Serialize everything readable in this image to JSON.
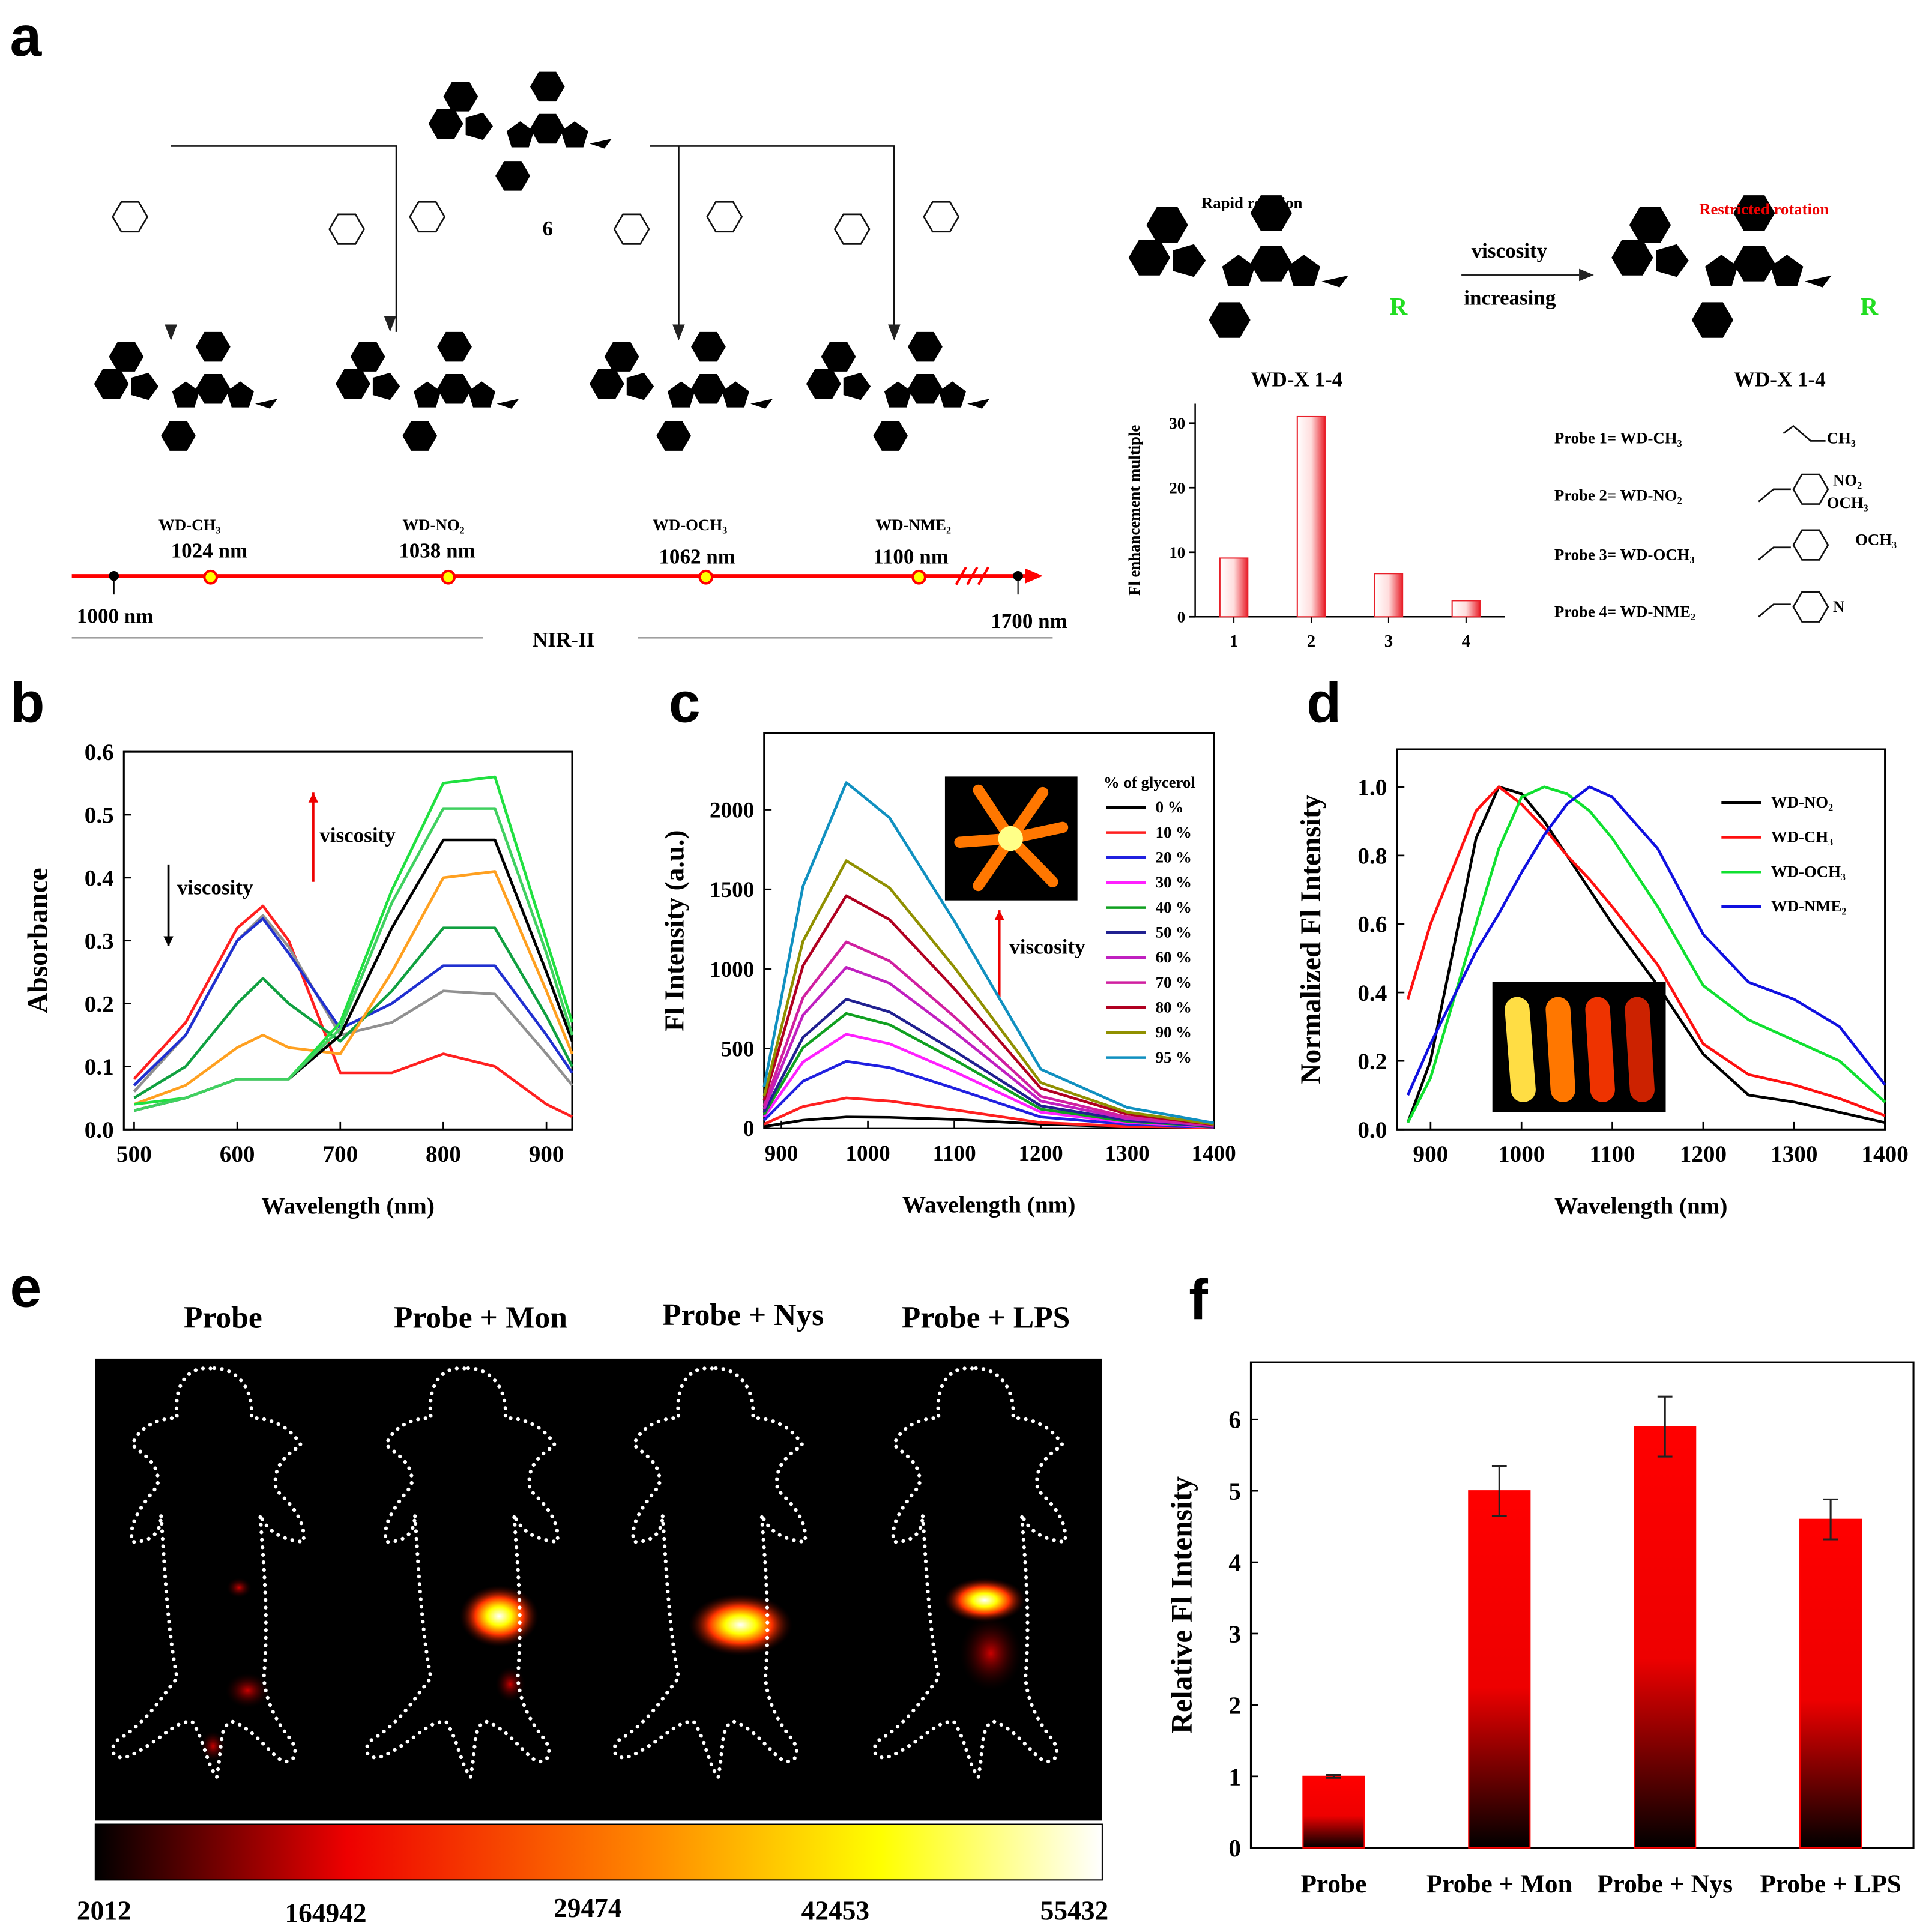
{
  "panel_labels": [
    "a",
    "b",
    "c",
    "d",
    "e",
    "f"
  ],
  "panel_a": {
    "precursor": "6",
    "compounds": [
      {
        "name": "WD-CH₃",
        "wavelength": "1024 nm"
      },
      {
        "name": "WD-NO₂",
        "wavelength": "1038 nm"
      },
      {
        "name": "WD-OCH₃",
        "wavelength": "1062 nm"
      },
      {
        "name": "WD-NME₂",
        "wavelength": "1100 nm"
      }
    ],
    "scale": {
      "start": "1000 nm",
      "end": "1700 nm",
      "band": "NIR-II"
    },
    "scheme": {
      "free": "Rapid rotation",
      "restricted": "Restricted rotation",
      "arrow_top": "viscosity",
      "arrow_bottom": "increasing",
      "name_left": "WD-X 1-4",
      "name_right": "WD-X 1-4",
      "group": "R"
    },
    "probes": [
      "Probe 1= WD-CH₃",
      "Probe 2= WD-NO₂",
      "Probe 3= WD-OCH₃",
      "Probe 4= WD-NME₂"
    ],
    "substituents": [
      "CH₃",
      "NO₂",
      "OCH₃",
      "OCH₃",
      "N"
    ]
  },
  "panel_e": {
    "groups": [
      "Probe",
      "Probe + Mon",
      "Probe + Nys",
      "Probe + LPS"
    ],
    "colorbar": [
      2012,
      164942,
      29474,
      42453,
      55432
    ]
  },
  "chart_data": [
    {
      "type": "bar",
      "ylabel": "Fl enhancement multiple",
      "categories": [
        "1",
        "2",
        "3",
        "4"
      ],
      "values": [
        9.1,
        31,
        6.7,
        2.5
      ],
      "color": "#e8202a",
      "ylim": [
        0,
        33
      ],
      "yticks": [
        0,
        10,
        20,
        30
      ]
    },
    {
      "type": "line",
      "xlabel": "Wavelength (nm)",
      "ylabel": "Absorbance",
      "annotations": [
        "viscosity",
        "viscosity"
      ],
      "x": [
        500,
        550,
        600,
        625,
        650,
        700,
        750,
        800,
        850,
        900,
        925
      ],
      "xlim": [
        490,
        925
      ],
      "xticks": [
        500,
        600,
        700,
        800,
        900
      ],
      "ylim": [
        0,
        0.6
      ],
      "yticks": [
        {
          "value": 0,
          "label": "0.0"
        },
        0.1,
        0.2,
        0.3,
        0.4,
        0.5,
        0.6
      ],
      "series": [
        {
          "color": "#ff2020",
          "values": [
            0.08,
            0.17,
            0.32,
            0.355,
            0.3,
            0.09,
            0.09,
            0.12,
            0.1,
            0.04,
            0.02
          ]
        },
        {
          "color": "#909090",
          "values": [
            0.06,
            0.15,
            0.3,
            0.34,
            0.29,
            0.15,
            0.17,
            0.22,
            0.215,
            0.12,
            0.07
          ]
        },
        {
          "color": "#2030d0",
          "values": [
            0.07,
            0.15,
            0.3,
            0.335,
            0.28,
            0.16,
            0.2,
            0.26,
            0.26,
            0.15,
            0.09
          ]
        },
        {
          "color": "#10a040",
          "values": [
            0.05,
            0.1,
            0.2,
            0.24,
            0.2,
            0.14,
            0.22,
            0.32,
            0.32,
            0.18,
            0.1
          ]
        },
        {
          "color": "#ffa020",
          "values": [
            0.04,
            0.07,
            0.13,
            0.15,
            0.13,
            0.12,
            0.25,
            0.4,
            0.41,
            0.22,
            0.12
          ]
        },
        {
          "color": "#000000",
          "values": [
            0.03,
            0.05,
            0.08,
            0.08,
            0.08,
            0.15,
            0.32,
            0.46,
            0.46,
            0.25,
            0.14
          ]
        },
        {
          "color": "#20e040",
          "values": [
            0.04,
            0.05,
            0.08,
            0.08,
            0.08,
            0.17,
            0.38,
            0.55,
            0.56,
            0.3,
            0.17
          ]
        },
        {
          "color": "#40d060",
          "values": [
            0.03,
            0.05,
            0.08,
            0.08,
            0.08,
            0.16,
            0.36,
            0.51,
            0.51,
            0.28,
            0.15
          ]
        }
      ]
    },
    {
      "type": "line",
      "xlabel": "Wavelength (nm)",
      "ylabel": "Fl Intensity (a.u.)",
      "annotations": [
        "viscosity"
      ],
      "legend_title": "% of glycerol",
      "x": [
        880,
        925,
        975,
        1025,
        1100,
        1200,
        1300,
        1400
      ],
      "xlim": [
        880,
        1400
      ],
      "xticks": [
        900,
        1000,
        1100,
        1200,
        1300,
        1400
      ],
      "ylim": [
        0,
        2480
      ],
      "yticks": [
        0,
        500,
        1000,
        1500,
        2000
      ],
      "series": [
        {
          "name": "0 %",
          "color": "#000000",
          "values": [
            10,
            50,
            70,
            68,
            55,
            25,
            10,
            5
          ]
        },
        {
          "name": "10 %",
          "color": "#ff2020",
          "values": [
            25,
            135,
            190,
            170,
            115,
            35,
            12,
            4
          ]
        },
        {
          "name": "20 %",
          "color": "#2020e0",
          "values": [
            50,
            295,
            420,
            380,
            250,
            70,
            25,
            7
          ]
        },
        {
          "name": "30 %",
          "color": "#ff20ff",
          "values": [
            70,
            415,
            590,
            530,
            355,
            100,
            35,
            9
          ]
        },
        {
          "name": "40 %",
          "color": "#10a020",
          "values": [
            85,
            505,
            720,
            650,
            430,
            120,
            43,
            11
          ]
        },
        {
          "name": "50 %",
          "color": "#202090",
          "values": [
            100,
            570,
            810,
            730,
            485,
            140,
            50,
            12
          ]
        },
        {
          "name": "60 %",
          "color": "#c020c0",
          "values": [
            120,
            710,
            1010,
            910,
            605,
            170,
            60,
            15
          ]
        },
        {
          "name": "70 %",
          "color": "#d020a0",
          "values": [
            140,
            820,
            1170,
            1050,
            700,
            200,
            70,
            18
          ]
        },
        {
          "name": "80 %",
          "color": "#b00020",
          "values": [
            175,
            1020,
            1460,
            1310,
            875,
            250,
            88,
            22
          ]
        },
        {
          "name": "90 %",
          "color": "#909000",
          "values": [
            200,
            1175,
            1680,
            1510,
            1010,
            285,
            100,
            25
          ]
        },
        {
          "name": "95 %",
          "color": "#1090c0",
          "values": [
            260,
            1520,
            2170,
            1950,
            1300,
            370,
            130,
            33
          ]
        }
      ]
    },
    {
      "type": "line",
      "xlabel": "Wavelength (nm)",
      "ylabel": "Normalized Fl Intensity",
      "x": [
        875,
        900,
        950,
        975,
        1000,
        1025,
        1050,
        1075,
        1100,
        1150,
        1200,
        1250,
        1300,
        1350,
        1400
      ],
      "xlim": [
        863,
        1400
      ],
      "xticks": [
        900,
        1000,
        1100,
        1200,
        1300,
        1400
      ],
      "ylim": [
        0,
        1.11
      ],
      "yticks": [
        {
          "value": 0,
          "label": "0.0"
        },
        0.2,
        0.4,
        0.6,
        0.8,
        {
          "value": 1,
          "label": "1.0"
        }
      ],
      "series": [
        {
          "name": "WD-NO₂",
          "color": "#000000",
          "values": [
            0.02,
            0.2,
            0.85,
            1.0,
            0.98,
            0.9,
            0.8,
            0.7,
            0.6,
            0.42,
            0.22,
            0.1,
            0.08,
            0.05,
            0.02
          ]
        },
        {
          "name": "WD-CH₃",
          "color": "#ff1010",
          "values": [
            0.38,
            0.6,
            0.93,
            1.0,
            0.95,
            0.88,
            0.8,
            0.73,
            0.65,
            0.48,
            0.25,
            0.16,
            0.13,
            0.09,
            0.04
          ]
        },
        {
          "name": "WD-OCH₃",
          "color": "#10e030",
          "values": [
            0.02,
            0.15,
            0.6,
            0.82,
            0.97,
            1.0,
            0.98,
            0.93,
            0.85,
            0.65,
            0.42,
            0.32,
            0.26,
            0.2,
            0.08
          ]
        },
        {
          "name": "WD-NME₂",
          "color": "#1010e0",
          "values": [
            0.1,
            0.25,
            0.52,
            0.63,
            0.75,
            0.86,
            0.95,
            1.0,
            0.97,
            0.82,
            0.57,
            0.43,
            0.38,
            0.3,
            0.13
          ]
        }
      ]
    },
    {
      "type": "bar",
      "ylabel": "Relative Fl Intensity",
      "categories": [
        "Probe",
        "Probe + Mon",
        "Probe + Nys",
        "Probe + LPS"
      ],
      "values": [
        1.0,
        5.0,
        5.9,
        4.6
      ],
      "errors": [
        0.02,
        0.35,
        0.42,
        0.28
      ],
      "color": "#ff0000",
      "ylim": [
        0,
        6.8
      ],
      "yticks": [
        0,
        1,
        2,
        3,
        4,
        5,
        6
      ]
    }
  ]
}
